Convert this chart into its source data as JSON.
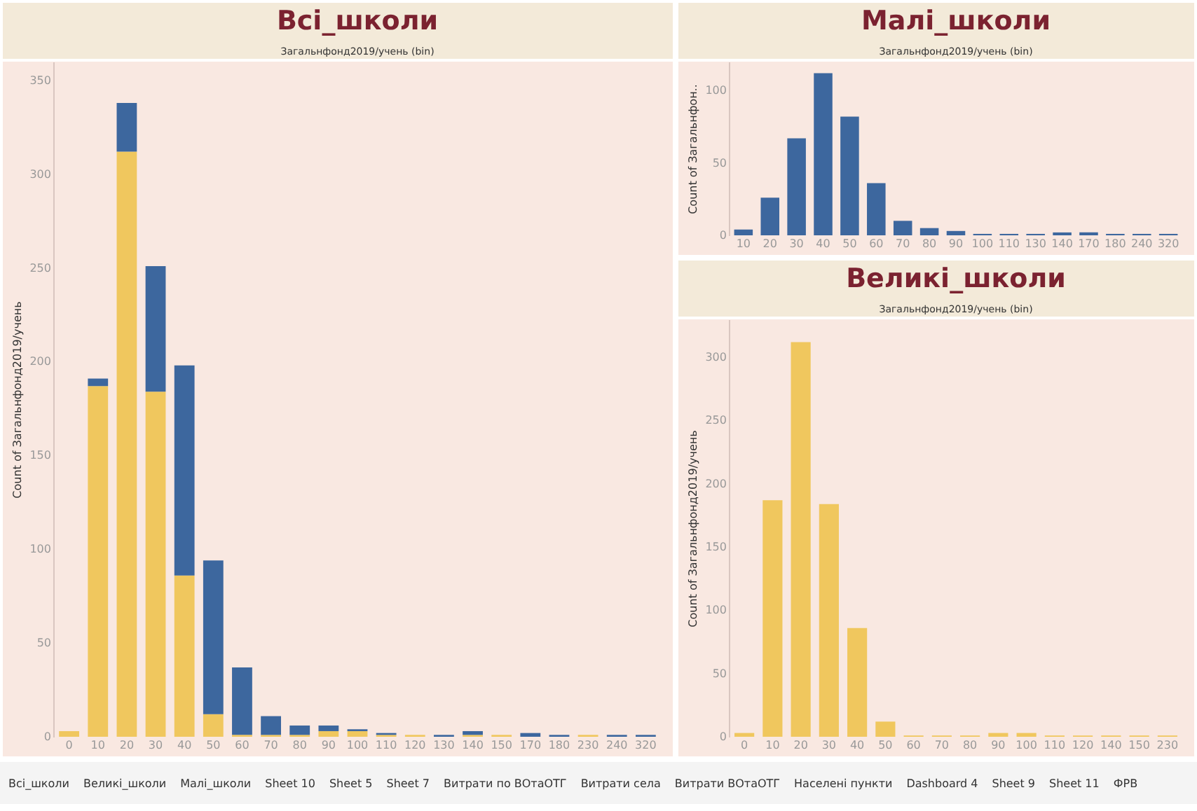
{
  "chart_data": [
    {
      "type": "bar",
      "title": "Всі_школи",
      "xlabel": "Загальнфонд2019/учень (bin)",
      "ylabel": "Count of Загальнфонд2019/учень",
      "categories": [
        "0",
        "10",
        "20",
        "30",
        "40",
        "50",
        "60",
        "70",
        "80",
        "90",
        "100",
        "110",
        "120",
        "130",
        "140",
        "150",
        "170",
        "180",
        "230",
        "240",
        "320"
      ],
      "stacked": true,
      "series": [
        {
          "color": "#f0c75e",
          "values": [
            3,
            187,
            312,
            184,
            86,
            12,
            1,
            1,
            1,
            3,
            3,
            1,
            1,
            0,
            1,
            1,
            0,
            0,
            1,
            0,
            0
          ]
        },
        {
          "color": "#3d679e",
          "values": [
            0,
            4,
            26,
            67,
            112,
            82,
            36,
            10,
            5,
            3,
            1,
            1,
            0,
            1,
            2,
            0,
            2,
            1,
            0,
            1,
            1
          ]
        }
      ],
      "ylim": [
        0,
        360
      ],
      "yticks": [
        0,
        50,
        100,
        150,
        200,
        250,
        300,
        350
      ],
      "grid": false,
      "legend": false,
      "annotations": [
        "Всі_школи",
        "Великі_школи",
        "Малі_школи",
        "Sheet 10",
        "Sheet 5",
        "Sheet 7",
        "Витрати по ВОтаОТГ",
        "Витрати села",
        "Витрати ВОтаОТГ",
        "Населені пункти",
        "Dashboard 4",
        "Sheet 9",
        "Sheet 11",
        "ФРВ"
      ]
    },
    {
      "type": "bar",
      "title": "Малі_школи",
      "xlabel": "Загальнфонд2019/учень (bin)",
      "ylabel": "Count of Загальнфон..",
      "categories": [
        "10",
        "20",
        "30",
        "40",
        "50",
        "60",
        "70",
        "80",
        "90",
        "100",
        "110",
        "130",
        "140",
        "170",
        "180",
        "240",
        "320"
      ],
      "color": "#3d679e",
      "values": [
        4,
        26,
        67,
        112,
        82,
        36,
        10,
        5,
        3,
        1,
        1,
        1,
        2,
        2,
        1,
        1,
        1
      ],
      "ylim": [
        0,
        120
      ],
      "yticks": [
        0,
        50,
        100
      ],
      "grid": false,
      "legend": false
    },
    {
      "type": "bar",
      "title": "Великі_школи",
      "xlabel": "Загальнфонд2019/учень (bin)",
      "ylabel": "Count of Загальнфонд2019/учень",
      "categories": [
        "0",
        "10",
        "20",
        "30",
        "40",
        "50",
        "60",
        "70",
        "80",
        "90",
        "100",
        "110",
        "120",
        "140",
        "150",
        "230"
      ],
      "color": "#f0c75e",
      "values": [
        3,
        187,
        312,
        184,
        86,
        12,
        1,
        1,
        1,
        3,
        3,
        1,
        1,
        1,
        1,
        1
      ],
      "ylim": [
        0,
        330
      ],
      "yticks": [
        0,
        50,
        100,
        150,
        200,
        250,
        300
      ],
      "grid": false,
      "legend": false
    }
  ]
}
